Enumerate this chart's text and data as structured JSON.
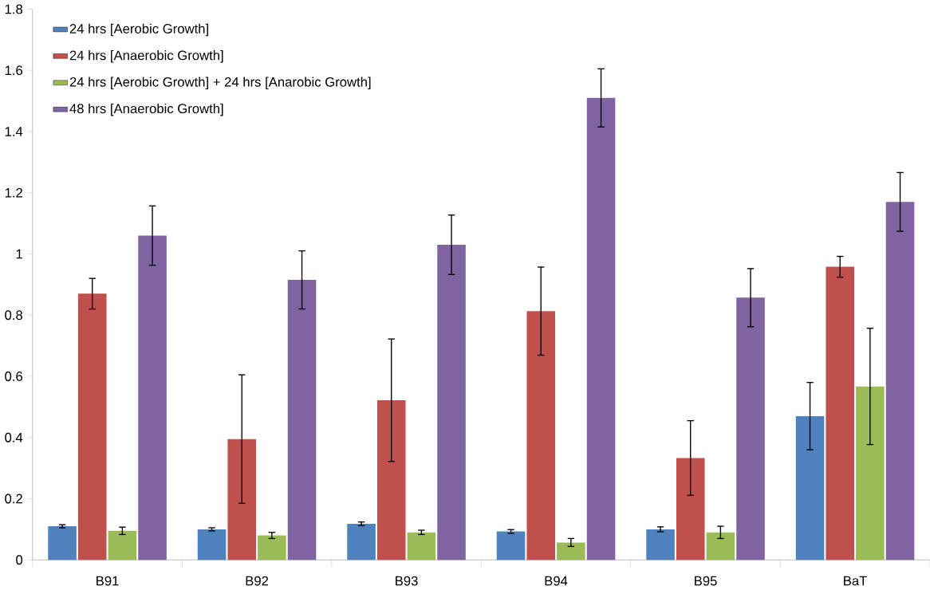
{
  "chart_data": {
    "type": "bar",
    "categories": [
      "B91",
      "B92",
      "B93",
      "B94",
      "B95",
      "BaT"
    ],
    "series": [
      {
        "name": "24 hrs [Aerobic Growth]",
        "color": "#4f81bd",
        "values": [
          0.11,
          0.1,
          0.118,
          0.093,
          0.1,
          0.47
        ],
        "errors": [
          0.005,
          0.005,
          0.006,
          0.006,
          0.008,
          0.11
        ]
      },
      {
        "name": "24 hrs [Anaerobic Growth]",
        "color": "#c0504d",
        "values": [
          0.87,
          0.395,
          0.522,
          0.813,
          0.333,
          0.958
        ],
        "errors": [
          0.05,
          0.21,
          0.2,
          0.144,
          0.122,
          0.034
        ]
      },
      {
        "name": "24 hrs [Aerobic Growth] + 24 hrs [Anarobic Growth]",
        "color": "#9bbb59",
        "values": [
          0.095,
          0.08,
          0.09,
          0.057,
          0.09,
          0.567
        ],
        "errors": [
          0.012,
          0.01,
          0.007,
          0.013,
          0.02,
          0.19
        ]
      },
      {
        "name": "48 hrs [Anaerobic Growth]",
        "color": "#8064a2",
        "values": [
          1.06,
          0.915,
          1.03,
          1.51,
          0.857,
          1.17
        ],
        "errors": [
          0.097,
          0.095,
          0.097,
          0.095,
          0.095,
          0.096
        ]
      }
    ],
    "ylim": [
      0,
      1.8
    ],
    "yticks": [
      0,
      0.2,
      0.4,
      0.6,
      0.8,
      1,
      1.2,
      1.4,
      1.6,
      1.8
    ],
    "grid": false,
    "legend": "top left"
  }
}
